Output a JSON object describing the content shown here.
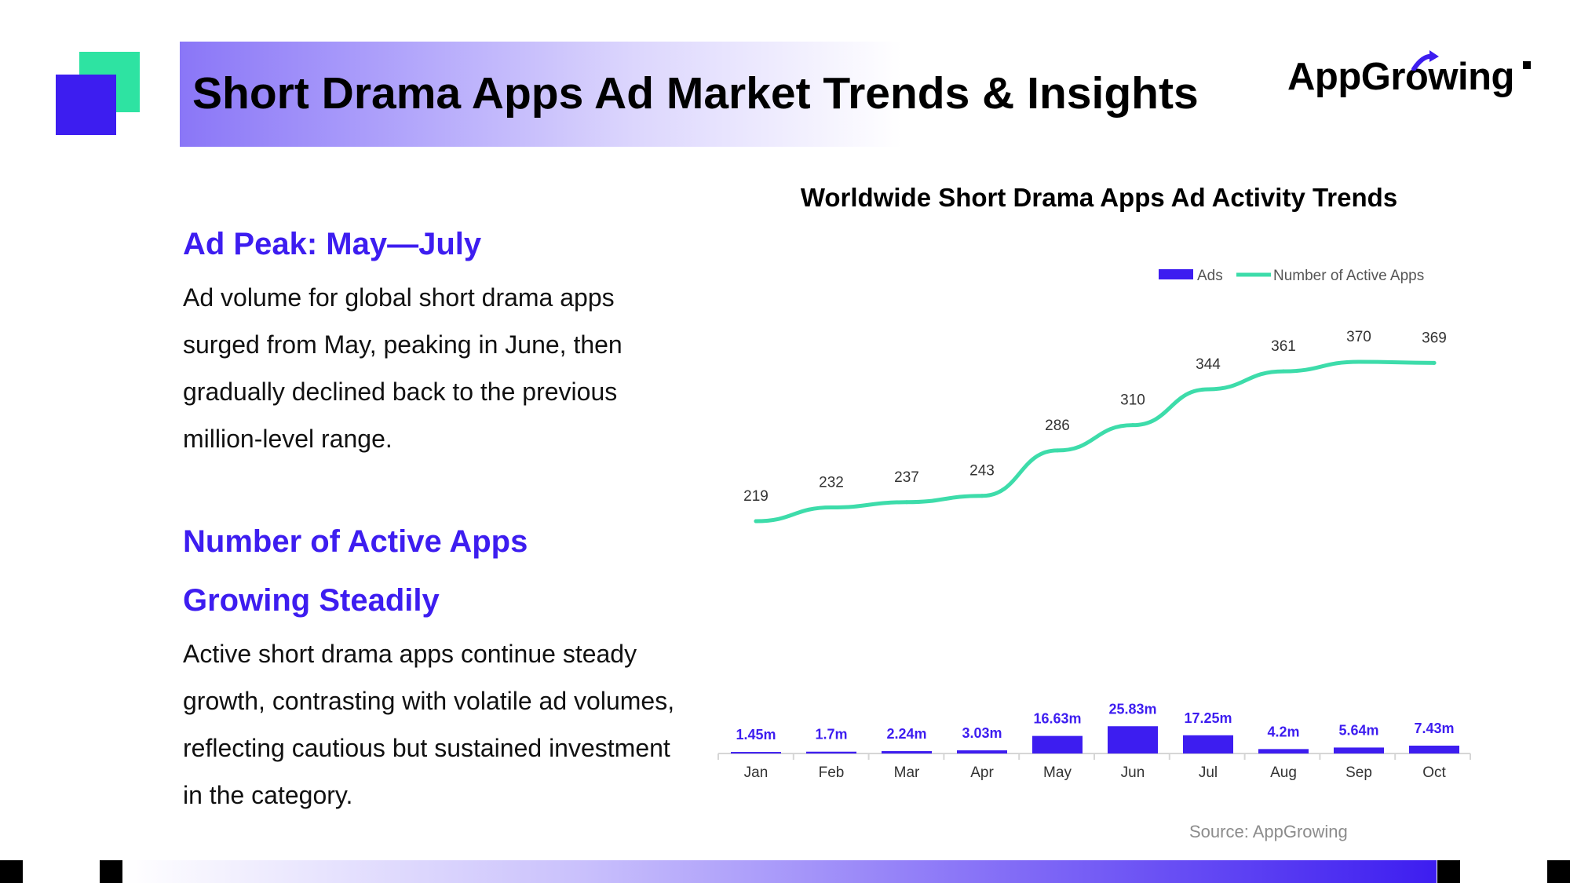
{
  "header": {
    "title": "Short Drama Apps Ad Market Trends & Insights",
    "logo_text": "AppGrowing"
  },
  "sections": [
    {
      "heading_lines": [
        "Ad Peak: May—July"
      ],
      "body": "Ad volume for global short drama apps surged from May, peaking in June, then gradually declined back to the previous million-level range."
    },
    {
      "heading_lines": [
        "Number of Active Apps",
        "Growing Steadily"
      ],
      "body": "Active short drama apps continue steady growth, contrasting with volatile ad volumes, reflecting cautious but sustained investment in the category."
    }
  ],
  "source": "Source: AppGrowing",
  "colors": {
    "accent": "#3d1df0",
    "line": "#3ddcaa",
    "green": "#2ee3a2"
  },
  "chart_data": {
    "type": "bar+line",
    "title": "Worldwide Short Drama Apps Ad Activity Trends",
    "legend_position": "top-right",
    "categories": [
      "Jan",
      "Feb",
      "Mar",
      "Apr",
      "May",
      "Jun",
      "Jul",
      "Aug",
      "Sep",
      "Oct"
    ],
    "series": [
      {
        "name": "Ads",
        "kind": "bar",
        "unit": "m",
        "values": [
          1.45,
          1.7,
          2.24,
          3.03,
          16.63,
          25.83,
          17.25,
          4.2,
          5.64,
          7.43
        ],
        "labels": [
          "1.45m",
          "1.7m",
          "2.24m",
          "3.03m",
          "16.63m",
          "25.83m",
          "17.25m",
          "4.2m",
          "5.64m",
          "7.43m"
        ]
      },
      {
        "name": "Number of Active Apps",
        "kind": "line",
        "values": [
          219,
          232,
          237,
          243,
          286,
          310,
          344,
          361,
          370,
          369
        ],
        "labels": [
          "219",
          "232",
          "237",
          "243",
          "286",
          "310",
          "344",
          "361",
          "370",
          "369"
        ]
      }
    ],
    "bar_ylim": [
      0,
      26
    ],
    "line_ylim": [
      0,
      370
    ]
  }
}
